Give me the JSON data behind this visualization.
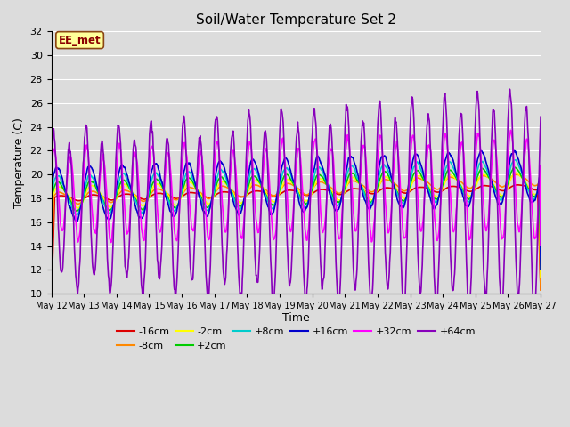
{
  "title": "Soil/Water Temperature Set 2",
  "xlabel": "Time",
  "ylabel": "Temperature (C)",
  "ylim": [
    10,
    32
  ],
  "yticks": [
    10,
    12,
    14,
    16,
    18,
    20,
    22,
    24,
    26,
    28,
    30,
    32
  ],
  "background_color": "#dcdcdc",
  "plot_bg_color": "#dcdcdc",
  "grid_color": "#ffffff",
  "annotation_text": "EE_met",
  "annotation_bg": "#ffff99",
  "annotation_border": "#8B4513",
  "series_order": [
    "-16cm",
    "-8cm",
    "-2cm",
    "+2cm",
    "+8cm",
    "+16cm",
    "+32cm",
    "+64cm"
  ],
  "series": {
    "-16cm": {
      "color": "#dd0000",
      "lw": 1.2
    },
    "-8cm": {
      "color": "#ff8800",
      "lw": 1.2
    },
    "-2cm": {
      "color": "#ffff00",
      "lw": 1.2
    },
    "+2cm": {
      "color": "#00cc00",
      "lw": 1.2
    },
    "+8cm": {
      "color": "#00cccc",
      "lw": 1.2
    },
    "+16cm": {
      "color": "#0000cc",
      "lw": 1.2
    },
    "+32cm": {
      "color": "#ff00ff",
      "lw": 1.2
    },
    "+64cm": {
      "color": "#8800bb",
      "lw": 1.2
    }
  },
  "tick_labels": [
    "May 12",
    "May 13",
    "May 14",
    "May 15",
    "May 16",
    "May 17",
    "May 18",
    "May 19",
    "May 20",
    "May 21",
    "May 22",
    "May 23",
    "May 24",
    "May 25",
    "May 26",
    "May 27"
  ]
}
